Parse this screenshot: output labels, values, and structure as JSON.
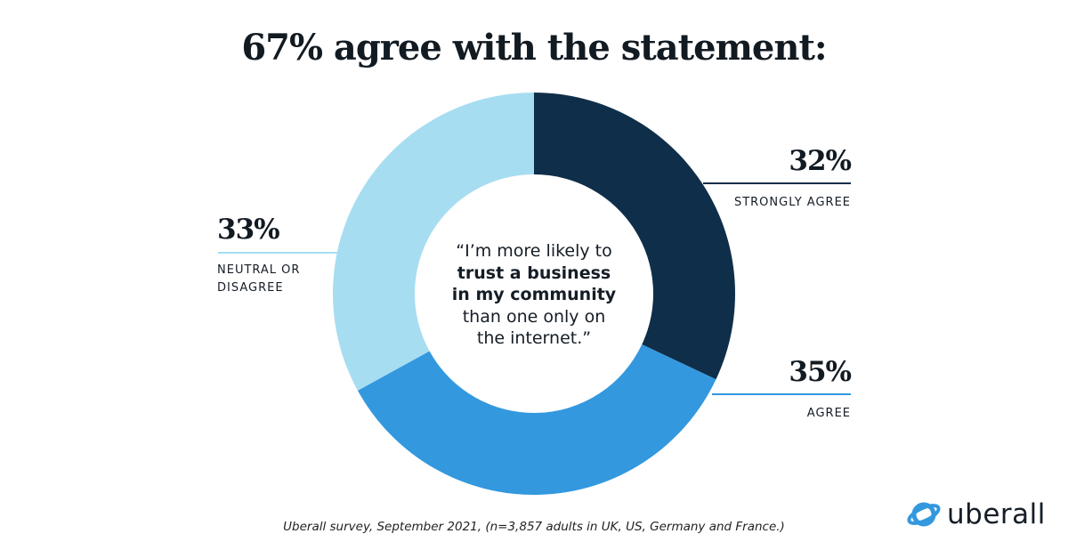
{
  "title": "67% agree with the statement:",
  "chart_data": {
    "type": "pie",
    "variant": "donut",
    "title": "67% agree with the statement:",
    "center_text": {
      "line1": "“I’m more likely to",
      "line2_bold": "trust a business",
      "line3_bold": "in my community",
      "line4": "than one only on",
      "line5": "the internet.”"
    },
    "slices": [
      {
        "label": "STRONGLY AGREE",
        "value": 32,
        "value_label": "32%",
        "color": "#0f2e49"
      },
      {
        "label": "AGREE",
        "value": 35,
        "value_label": "35%",
        "color": "#3398de"
      },
      {
        "label": "NEUTRAL OR DISAGREE",
        "value": 33,
        "value_label": "33%",
        "color": "#a6ddf1"
      }
    ],
    "start": "top",
    "direction": "clockwise"
  },
  "neutral_label_lines": [
    "NEUTRAL OR",
    "DISAGREE"
  ],
  "source": "Uberall survey, September 2021, (n=3,857 adults in UK, US, Germany and France.)",
  "logo": {
    "text": "uberall",
    "color": "#3398de"
  }
}
